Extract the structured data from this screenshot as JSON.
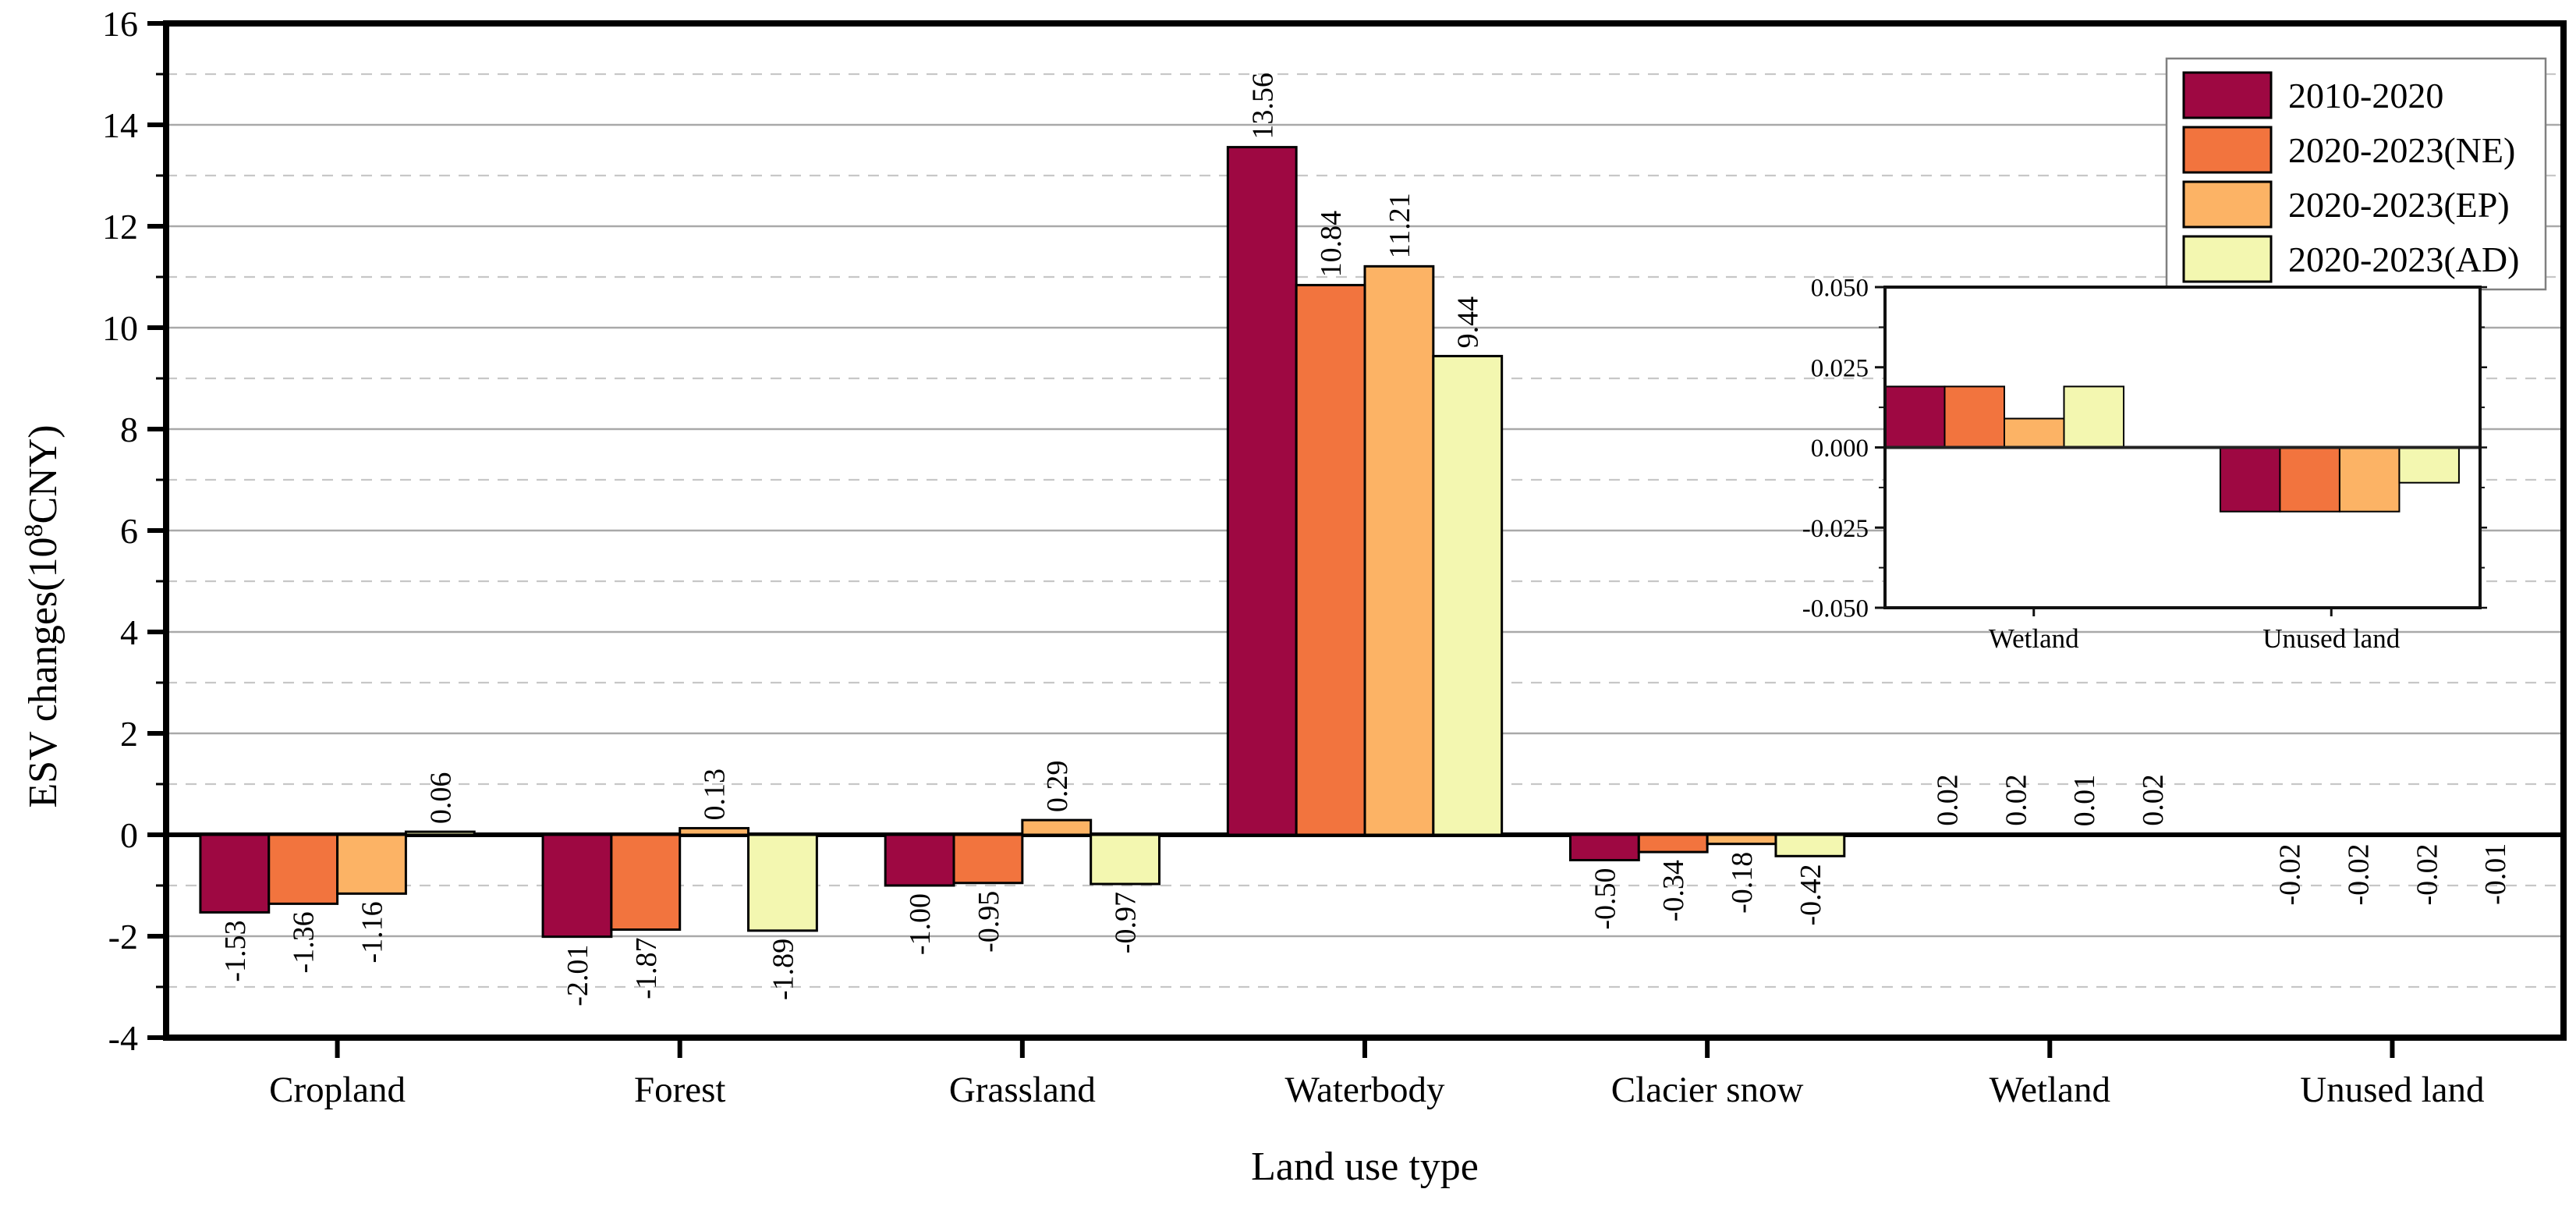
{
  "figure": {
    "y_axis_title_prefix": "ESV changes(10",
    "y_axis_title_sup": "8",
    "y_axis_title_suffix": "CNY)",
    "x_axis_title": "Land use type"
  },
  "colors": {
    "background": "#ffffff",
    "axis": "#000000",
    "bar_edge": "#000000",
    "grid_solid": "#a9a9a9",
    "grid_dashed": "#c7c7c7",
    "legend_border": "#808080",
    "series": [
      "#9e0842",
      "#f2743e",
      "#fcb365",
      "#f3f7b0"
    ]
  },
  "chart_data": {
    "type": "bar",
    "title": "",
    "xlabel": "Land use type",
    "ylabel": "ESV changes(10^8 CNY)",
    "ylim": [
      -4,
      16
    ],
    "ytick_step": 2,
    "yticks": [
      "16",
      "14",
      "12",
      "10",
      "8",
      "6",
      "4",
      "2",
      "0",
      "-2",
      "-4"
    ],
    "grid": "horizontal: solid gray at even values, dashed at odd values, thick black zero line",
    "legend_position": "top-right",
    "categories": [
      "Cropland",
      "Forest",
      "Grassland",
      "Waterbody",
      "Clacier snow",
      "Wetland",
      "Unused land"
    ],
    "series": [
      {
        "name": "2010-2020",
        "color": "#9e0842",
        "values": [
          -1.53,
          -2.01,
          -1.0,
          13.56,
          -0.5,
          0.019,
          -0.02
        ],
        "labels": [
          "-1.53",
          "-2.01",
          "-1.00",
          "13.56",
          "-0.50",
          "0.02",
          "-0.02"
        ]
      },
      {
        "name": "2020-2023(NE)",
        "color": "#f2743e",
        "values": [
          -1.36,
          -1.87,
          -0.95,
          10.84,
          -0.34,
          0.019,
          -0.02
        ],
        "labels": [
          "-1.36",
          "-1.87",
          "-0.95",
          "10.84",
          "-0.34",
          "0.02",
          "-0.02"
        ]
      },
      {
        "name": "2020-2023(EP)",
        "color": "#fcb365",
        "values": [
          -1.16,
          0.13,
          0.29,
          11.21,
          -0.18,
          0.009,
          -0.02
        ],
        "labels": [
          "-1.16",
          "0.13",
          "0.29",
          "11.21",
          "-0.18",
          "0.01",
          "-0.02"
        ]
      },
      {
        "name": "2020-2023(AD)",
        "color": "#f3f7b0",
        "values": [
          0.06,
          -1.89,
          -0.97,
          9.44,
          -0.42,
          0.019,
          -0.011
        ],
        "labels": [
          "0.06",
          "-1.89",
          "-0.97",
          "9.44",
          "-0.42",
          "0.02",
          "-0.01"
        ]
      }
    ]
  },
  "inset_chart_data": {
    "type": "bar",
    "categories": [
      "Wetland",
      "Unused land"
    ],
    "ylim": [
      -0.05,
      0.05
    ],
    "yticks": [
      "0.050",
      "0.025",
      "0.000",
      "-0.025",
      "-0.050"
    ],
    "grid": "none, white background",
    "series": [
      {
        "name": "2010-2020",
        "values": [
          0.019,
          -0.02
        ]
      },
      {
        "name": "2020-2023(NE)",
        "values": [
          0.019,
          -0.02
        ]
      },
      {
        "name": "2020-2023(EP)",
        "values": [
          0.009,
          -0.02
        ]
      },
      {
        "name": "2020-2023(AD)",
        "values": [
          0.019,
          -0.011
        ]
      }
    ]
  },
  "legend": {
    "items": [
      {
        "label": "2010-2020",
        "color": "#9e0842"
      },
      {
        "label": "2020-2023(NE)",
        "color": "#f2743e"
      },
      {
        "label": "2020-2023(EP)",
        "color": "#fcb365"
      },
      {
        "label": "2020-2023(AD)",
        "color": "#f3f7b0"
      }
    ]
  }
}
